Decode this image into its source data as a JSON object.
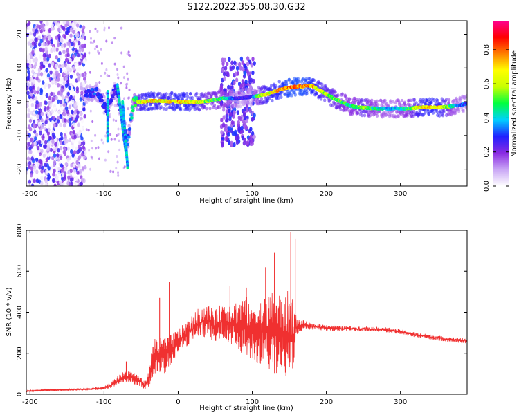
{
  "title": "S122.2022.355.08.30.G32",
  "chart_data": [
    {
      "type": "heatmap",
      "xlabel": "Height of straight line (km)",
      "ylabel": "Frequency (Hz)",
      "xlim": [
        -205,
        390
      ],
      "ylim": [
        -25,
        24
      ],
      "xticks": [
        -200,
        -100,
        0,
        100,
        200,
        300
      ],
      "xticklabels": [
        "-200",
        "-100",
        "0",
        "100",
        "200",
        "300"
      ],
      "yticks": [
        -20,
        -10,
        0,
        10,
        20
      ],
      "yticklabels": [
        "-20",
        "-10",
        "0",
        "10",
        "20"
      ],
      "grid": false,
      "colorbar": {
        "label": "Normalized spectral amplitude",
        "range": [
          0,
          0.97
        ],
        "ticks": [
          0.0,
          0.2,
          0.4,
          0.6,
          0.8
        ],
        "ticklabels": [
          "0.0",
          "0.2",
          "0.4",
          "0.6",
          "0.8"
        ],
        "colormap": [
          "#ffffff",
          "#c9a6f5",
          "#8a2be2",
          "#2020ff",
          "#00d0ff",
          "#00ff40",
          "#c8ff00",
          "#ffff00",
          "#ff8000",
          "#ff0000",
          "#ff0090"
        ]
      },
      "ridge": {
        "x": [
          -125,
          -110,
          -95,
          -85,
          -75,
          -68,
          -60,
          -50,
          -40,
          -30,
          -20,
          -10,
          0,
          10,
          20,
          30,
          40,
          50,
          60,
          70,
          80,
          90,
          100,
          110,
          120,
          130,
          140,
          150,
          160,
          170,
          180,
          190,
          200,
          210,
          220,
          230,
          240,
          250,
          260,
          270,
          280,
          290,
          300,
          310,
          320,
          330,
          340,
          350,
          360,
          370,
          380,
          390
        ],
        "frequency": [
          2,
          3,
          -3,
          4,
          -5,
          -12,
          0,
          0,
          0.2,
          0.3,
          0.2,
          0.1,
          0,
          0,
          0,
          0,
          0.2,
          0.5,
          1,
          1,
          1,
          1.2,
          1.5,
          1.8,
          2.2,
          3,
          3.8,
          4.2,
          4.5,
          4.6,
          4.8,
          3.5,
          2.3,
          1,
          0,
          -1,
          -1.6,
          -1.8,
          -1.9,
          -2,
          -2,
          -2,
          -2,
          -2,
          -1.8,
          -1.6,
          -1.6,
          -1.7,
          -1.6,
          -1.3,
          -1,
          -0.5
        ],
        "amplitude": [
          0.3,
          0.35,
          0.3,
          0.3,
          0.32,
          0.35,
          0.55,
          0.75,
          0.8,
          0.78,
          0.75,
          0.78,
          0.82,
          0.8,
          0.78,
          0.7,
          0.6,
          0.6,
          0.55,
          0.4,
          0.3,
          0.3,
          0.35,
          0.65,
          0.75,
          0.8,
          0.85,
          0.9,
          0.9,
          0.9,
          0.85,
          0.75,
          0.7,
          0.65,
          0.6,
          0.55,
          0.55,
          0.7,
          0.55,
          0.5,
          0.45,
          0.45,
          0.5,
          0.55,
          0.7,
          0.8,
          0.82,
          0.8,
          0.7,
          0.5,
          0.4,
          0.35
        ]
      }
    },
    {
      "type": "line",
      "xlabel": "Height of straight line (km)",
      "ylabel": "SNR (10 * v/v)",
      "xlim": [
        -205,
        390
      ],
      "ylim": [
        0,
        800
      ],
      "xticks": [
        -200,
        -100,
        0,
        100,
        200,
        300
      ],
      "xticklabels": [
        "-200",
        "-100",
        "0",
        "100",
        "200",
        "300"
      ],
      "yticks": [
        0,
        200,
        400,
        600,
        800
      ],
      "yticklabels": [
        "0",
        "200",
        "400",
        "600",
        "800"
      ],
      "grid": false,
      "color": "#f03030",
      "series": [
        {
          "x": [
            -205,
            -180,
            -150,
            -120,
            -100,
            -90,
            -80,
            -70,
            -60,
            -50,
            -45,
            -40,
            -35,
            -30,
            -25,
            -20,
            -15,
            -10,
            0,
            10,
            20,
            30,
            40,
            50,
            60,
            70,
            80,
            90,
            100,
            110,
            120,
            130,
            140,
            150,
            155,
            160,
            170,
            180,
            200,
            220,
            250,
            280,
            300,
            320,
            340,
            360,
            390
          ],
          "y": [
            15,
            20,
            22,
            25,
            30,
            45,
            70,
            90,
            80,
            60,
            40,
            70,
            160,
            200,
            180,
            190,
            200,
            210,
            260,
            290,
            320,
            350,
            360,
            330,
            360,
            350,
            340,
            330,
            320,
            300,
            310,
            300,
            300,
            290,
            280,
            330,
            340,
            330,
            325,
            320,
            320,
            315,
            305,
            290,
            280,
            270,
            260
          ],
          "spread": [
            5,
            5,
            5,
            5,
            8,
            15,
            25,
            30,
            30,
            25,
            20,
            40,
            80,
            100,
            90,
            100,
            80,
            80,
            60,
            60,
            70,
            80,
            80,
            80,
            90,
            100,
            120,
            150,
            150,
            160,
            180,
            200,
            200,
            220,
            200,
            40,
            20,
            15,
            15,
            12,
            12,
            12,
            12,
            12,
            12,
            12,
            12
          ],
          "peaks": [
            {
              "x": -70,
              "y": 160
            },
            {
              "x": -25,
              "y": 470
            },
            {
              "x": -12,
              "y": 550
            },
            {
              "x": 70,
              "y": 530
            },
            {
              "x": 92,
              "y": 520
            },
            {
              "x": 118,
              "y": 620
            },
            {
              "x": 130,
              "y": 690
            },
            {
              "x": 152,
              "y": 790
            },
            {
              "x": 158,
              "y": 760
            }
          ]
        }
      ]
    }
  ]
}
